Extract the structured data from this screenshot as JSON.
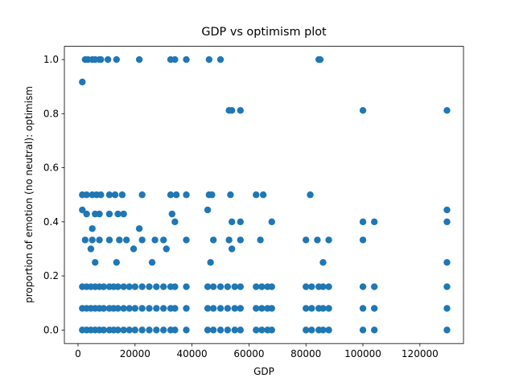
{
  "chart_data": {
    "type": "scatter",
    "title": "GDP vs optimism plot",
    "x_label": "GDP",
    "y_label": "proportion of emotion (no neutral): optimism",
    "color": "#1f77b4",
    "x": [
      2500,
      3500,
      5000,
      6000,
      7500,
      8000,
      10500,
      13500,
      21500,
      32500,
      34000,
      38000,
      46000,
      50000,
      84500,
      85000,
      1500,
      53000,
      54000,
      57000,
      100000,
      129500,
      1500,
      3000,
      5000,
      6500,
      8000,
      11000,
      13000,
      15500,
      22500,
      32500,
      34500,
      38000,
      46000,
      47000,
      53500,
      62500,
      65000,
      81500,
      1500,
      45500,
      129500,
      3000,
      6000,
      7500,
      11000,
      14000,
      16000,
      33000,
      34000,
      54000,
      57000,
      68000,
      100000,
      104000,
      129500,
      5000,
      21500,
      2500,
      5000,
      7500,
      11000,
      14500,
      17000,
      22500,
      27000,
      30000,
      38000,
      47500,
      53000,
      57000,
      64000,
      80000,
      84000,
      88000,
      100000,
      4500,
      19500,
      31000,
      54000,
      6000,
      13500,
      26000,
      46500,
      86000,
      129500,
      1500,
      3000,
      4500,
      6000,
      7500,
      9000,
      11000,
      12500,
      14000,
      16000,
      18000,
      20000,
      22500,
      25000,
      27500,
      30000,
      32500,
      34000,
      38000,
      45500,
      47500,
      50000,
      52500,
      55000,
      57000,
      62500,
      64500,
      66500,
      68000,
      80000,
      82000,
      84500,
      86000,
      88000,
      100000,
      104000,
      129500,
      1500,
      3000,
      4500,
      6000,
      7500,
      9000,
      11000,
      12500,
      14000,
      16000,
      18000,
      20000,
      22500,
      25000,
      27500,
      30000,
      32500,
      34000,
      38000,
      45500,
      47500,
      50000,
      52500,
      55000,
      57000,
      62500,
      64500,
      66500,
      68000,
      80000,
      82000,
      84500,
      86000,
      88000,
      100000,
      104000,
      129500,
      1500,
      3000,
      4500,
      6000,
      7500,
      9000,
      11000,
      12500,
      14000,
      16000,
      18000,
      20000,
      22500,
      25000,
      27500,
      30000,
      32500,
      34000,
      38000,
      45500,
      47500,
      50000,
      52500,
      55000,
      57000,
      62500,
      64500,
      66500,
      68000,
      80000,
      82000,
      84500,
      86000,
      88000,
      100000,
      104000,
      129500
    ],
    "values": [
      1,
      1,
      1,
      1,
      1,
      1,
      1,
      1,
      1,
      1,
      1,
      1,
      1,
      1,
      1,
      1,
      0.917,
      0.812,
      0.812,
      0.812,
      0.812,
      0.812,
      0.5,
      0.5,
      0.5,
      0.5,
      0.5,
      0.5,
      0.5,
      0.5,
      0.5,
      0.5,
      0.5,
      0.5,
      0.5,
      0.5,
      0.5,
      0.5,
      0.5,
      0.5,
      0.444,
      0.444,
      0.444,
      0.429,
      0.429,
      0.429,
      0.429,
      0.429,
      0.429,
      0.429,
      0.4,
      0.4,
      0.4,
      0.4,
      0.4,
      0.4,
      0.4,
      0.375,
      0.375,
      0.333,
      0.333,
      0.333,
      0.333,
      0.333,
      0.333,
      0.333,
      0.333,
      0.333,
      0.333,
      0.333,
      0.333,
      0.333,
      0.333,
      0.333,
      0.333,
      0.333,
      0.333,
      0.3,
      0.3,
      0.3,
      0.3,
      0.25,
      0.25,
      0.25,
      0.25,
      0.25,
      0.25,
      0,
      0,
      0,
      0,
      0,
      0,
      0,
      0,
      0,
      0,
      0,
      0,
      0,
      0,
      0,
      0,
      0,
      0,
      0,
      0,
      0,
      0,
      0,
      0,
      0,
      0,
      0,
      0,
      0,
      0,
      0,
      0,
      0,
      0,
      0,
      0,
      0,
      0.08,
      0.08,
      0.08,
      0.08,
      0.08,
      0.08,
      0.08,
      0.08,
      0.08,
      0.08,
      0.08,
      0.08,
      0.08,
      0.08,
      0.08,
      0.08,
      0.08,
      0.08,
      0.08,
      0.08,
      0.08,
      0.08,
      0.08,
      0.08,
      0.08,
      0.08,
      0.08,
      0.08,
      0.08,
      0.08,
      0.08,
      0.08,
      0.08,
      0.08,
      0.08,
      0.08,
      0.08,
      0.16,
      0.16,
      0.16,
      0.16,
      0.16,
      0.16,
      0.16,
      0.16,
      0.16,
      0.16,
      0.16,
      0.16,
      0.16,
      0.16,
      0.16,
      0.16,
      0.16,
      0.16,
      0.16,
      0.16,
      0.16,
      0.16,
      0.16,
      0.16,
      0.16,
      0.16,
      0.16,
      0.16,
      0.16,
      0.16,
      0.16,
      0.16,
      0.16,
      0.16,
      0.16,
      0.16,
      0.16
    ],
    "xlim": [
      -4800,
      135300
    ],
    "ylim": [
      -0.05,
      1.049
    ],
    "xticks": [
      0,
      20000,
      40000,
      60000,
      80000,
      100000,
      120000
    ],
    "yticks": [
      {
        "value": 0,
        "label": "0.0"
      },
      0.2,
      0.4,
      0.6,
      0.8,
      {
        "value": 1,
        "label": "1.0"
      }
    ]
  }
}
